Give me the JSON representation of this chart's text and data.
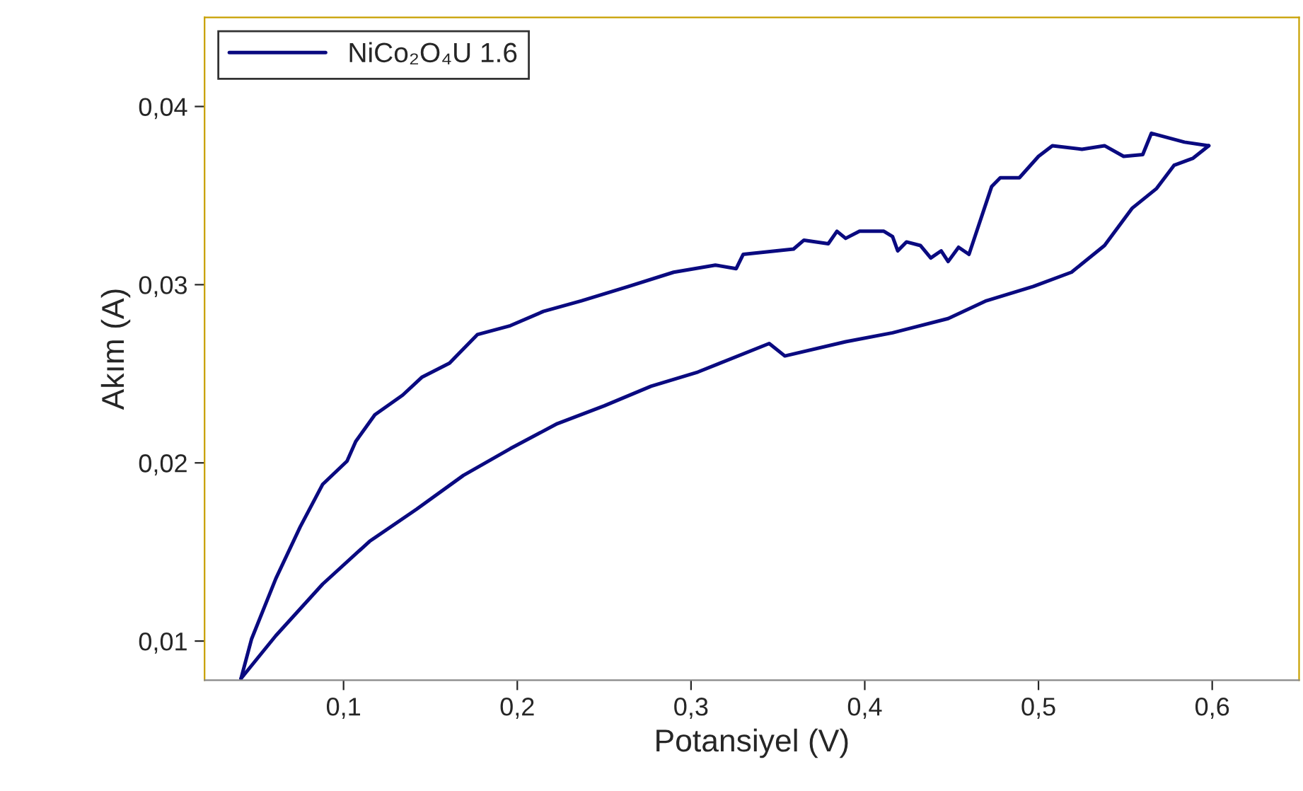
{
  "chart_data": {
    "type": "line",
    "xlabel": "Potansiyel (V)",
    "ylabel": "Akım (A)",
    "xlim": [
      0.02,
      0.65
    ],
    "ylim": [
      0.0078,
      0.045
    ],
    "xticks": [
      {
        "value": 0.1,
        "label": "0,1"
      },
      {
        "value": 0.2,
        "label": "0,2"
      },
      {
        "value": 0.3,
        "label": "0,3"
      },
      {
        "value": 0.4,
        "label": "0,4"
      },
      {
        "value": 0.5,
        "label": "0,5"
      },
      {
        "value": 0.6,
        "label": "0,6"
      }
    ],
    "yticks": [
      {
        "value": 0.01,
        "label": "0,01"
      },
      {
        "value": 0.02,
        "label": "0,02"
      },
      {
        "value": 0.03,
        "label": "0,03"
      },
      {
        "value": 0.04,
        "label": "0,04"
      }
    ],
    "grid": false,
    "legend": "top left",
    "marker": "none",
    "line_style": "solid",
    "series": [
      {
        "name": "NiCo₂O₄U 1.6",
        "color": "#0a0a80",
        "x": [
          0.041,
          0.061,
          0.088,
          0.115,
          0.142,
          0.169,
          0.196,
          0.223,
          0.25,
          0.277,
          0.304,
          0.345,
          0.354,
          0.389,
          0.416,
          0.448,
          0.47,
          0.497,
          0.519,
          0.538,
          0.554,
          0.568,
          0.578,
          0.589,
          0.598
        ],
        "values": [
          0.0079,
          0.0103,
          0.0132,
          0.0156,
          0.0174,
          0.0193,
          0.0208,
          0.0222,
          0.0232,
          0.0243,
          0.0251,
          0.0267,
          0.026,
          0.0268,
          0.0273,
          0.0281,
          0.0291,
          0.0299,
          0.0307,
          0.0322,
          0.0343,
          0.0354,
          0.0367,
          0.0371,
          0.0378
        ]
      },
      {
        "color": "#0a0a80",
        "x": [
          0.598,
          0.584,
          0.565,
          0.56,
          0.549,
          0.538,
          0.525,
          0.508,
          0.5,
          0.489,
          0.478,
          0.473,
          0.46,
          0.454,
          0.448,
          0.444,
          0.438,
          0.432,
          0.424,
          0.419,
          0.416,
          0.411,
          0.397,
          0.389,
          0.384,
          0.379,
          0.365,
          0.359,
          0.33,
          0.326,
          0.314,
          0.29,
          0.264,
          0.237,
          0.215,
          0.196,
          0.177,
          0.161,
          0.145,
          0.134,
          0.118,
          0.107,
          0.102,
          0.088,
          0.075,
          0.061,
          0.047,
          0.041
        ],
        "values": [
          0.0378,
          0.038,
          0.0385,
          0.0373,
          0.0372,
          0.0378,
          0.0376,
          0.0378,
          0.0372,
          0.036,
          0.036,
          0.0355,
          0.0317,
          0.0321,
          0.0313,
          0.0319,
          0.0315,
          0.0322,
          0.0324,
          0.0319,
          0.0327,
          0.033,
          0.033,
          0.0326,
          0.033,
          0.0323,
          0.0325,
          0.032,
          0.0317,
          0.0309,
          0.0311,
          0.0307,
          0.0299,
          0.0291,
          0.0285,
          0.0277,
          0.0272,
          0.0256,
          0.0248,
          0.0238,
          0.0227,
          0.0212,
          0.0201,
          0.0188,
          0.0164,
          0.0135,
          0.0101,
          0.0079
        ]
      }
    ]
  }
}
